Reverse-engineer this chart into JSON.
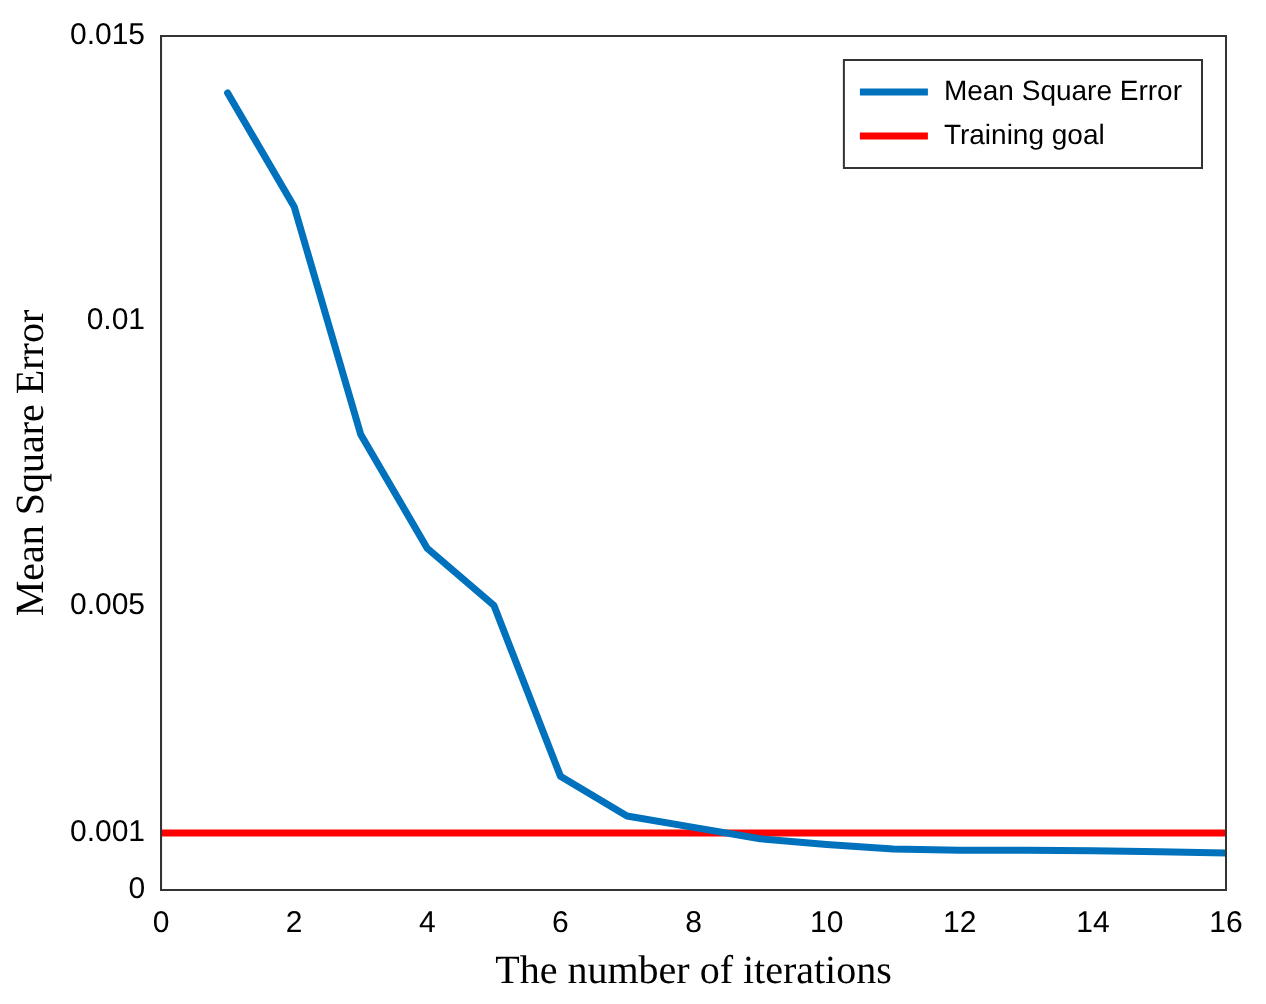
{
  "chart_data": {
    "type": "line",
    "xlabel": "The number of iterations",
    "ylabel": "Mean Square Error",
    "series": [
      {
        "name": "Mean Square Error",
        "color": "#0072bd",
        "x": [
          1,
          2,
          3,
          4,
          5,
          6,
          7,
          8,
          9,
          10,
          11,
          12,
          13,
          14,
          15,
          16
        ],
        "values": [
          0.014,
          0.012,
          0.008,
          0.006,
          0.005,
          0.002,
          0.0013,
          0.0011,
          0.0009,
          0.0008,
          0.00072,
          0.0007,
          0.0007,
          0.00069,
          0.00067,
          0.00065
        ]
      },
      {
        "name": "Training goal",
        "color": "#ff0000",
        "x": [
          0,
          16
        ],
        "values": [
          0.001,
          0.001
        ]
      }
    ],
    "xlim": [
      0,
      16
    ],
    "xticks": [
      0,
      2,
      4,
      6,
      8,
      10,
      12,
      14,
      16
    ],
    "ylim": [
      0,
      0.015
    ],
    "yticks": [
      0,
      0.001,
      0.005,
      0.01,
      0.015
    ],
    "grid": false,
    "legend": "top right",
    "marker": "none",
    "line_style": "solid"
  }
}
